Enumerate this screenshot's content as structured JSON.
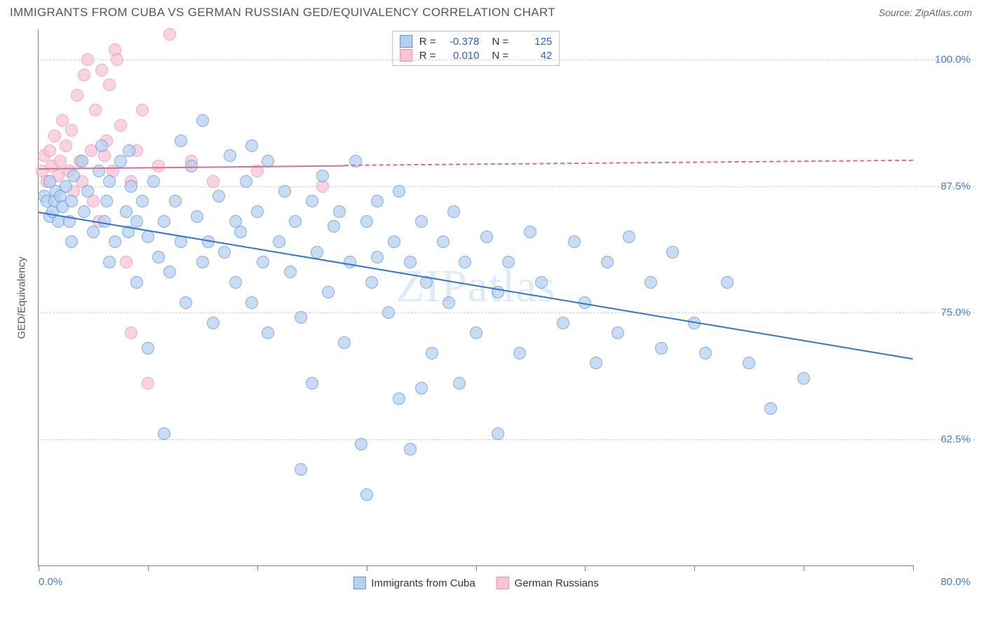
{
  "header": {
    "title": "IMMIGRANTS FROM CUBA VS GERMAN RUSSIAN GED/EQUIVALENCY CORRELATION CHART",
    "source": "Source: ZipAtlas.com"
  },
  "watermark": "ZIPatlas",
  "chart": {
    "type": "scatter",
    "background_color": "#ffffff",
    "grid_color": "#cfcfcf",
    "axis_color": "#808080",
    "x_axis": {
      "min": 0.0,
      "max": 80.0,
      "tick_interval": 10.0,
      "label_min": "0.0%",
      "label_max": "80.0%",
      "label_color": "#3f7ed6"
    },
    "y_axis": {
      "title": "GED/Equivalency",
      "min": 50.0,
      "max": 103.0,
      "gridlines": [
        62.5,
        75.0,
        87.5,
        100.0
      ],
      "tick_labels": [
        "62.5%",
        "75.0%",
        "87.5%",
        "100.0%"
      ],
      "label_color": "#3f7ed6",
      "title_color": "#555555"
    },
    "series": [
      {
        "name": "Immigrants from Cuba",
        "marker_fill": "#b6d1f0",
        "marker_stroke": "#5a93d9",
        "marker_radius": 9,
        "marker_opacity": 0.75,
        "trend_color": "#2f74d0",
        "trend_width": 2,
        "trend_start": {
          "x": 0.0,
          "y": 85.0
        },
        "trend_end": {
          "x": 80.0,
          "y": 70.5
        },
        "r_value": "-0.378",
        "n_value": "125",
        "points": [
          {
            "x": 0.5,
            "y": 86.5
          },
          {
            "x": 0.8,
            "y": 86.0
          },
          {
            "x": 1.0,
            "y": 84.5
          },
          {
            "x": 1.0,
            "y": 88.0
          },
          {
            "x": 1.3,
            "y": 85.0
          },
          {
            "x": 1.5,
            "y": 86.0
          },
          {
            "x": 1.6,
            "y": 87.0
          },
          {
            "x": 1.8,
            "y": 84.0
          },
          {
            "x": 2.0,
            "y": 86.5
          },
          {
            "x": 2.2,
            "y": 85.5
          },
          {
            "x": 2.5,
            "y": 87.5
          },
          {
            "x": 2.8,
            "y": 84.0
          },
          {
            "x": 3.0,
            "y": 86.0
          },
          {
            "x": 3.2,
            "y": 88.5
          },
          {
            "x": 3.0,
            "y": 82.0
          },
          {
            "x": 4.0,
            "y": 90.0
          },
          {
            "x": 4.2,
            "y": 85.0
          },
          {
            "x": 4.5,
            "y": 87.0
          },
          {
            "x": 5.0,
            "y": 83.0
          },
          {
            "x": 5.5,
            "y": 89.0
          },
          {
            "x": 5.8,
            "y": 91.5
          },
          {
            "x": 6.0,
            "y": 84.0
          },
          {
            "x": 6.2,
            "y": 86.0
          },
          {
            "x": 6.5,
            "y": 80.0
          },
          {
            "x": 6.5,
            "y": 88.0
          },
          {
            "x": 7.0,
            "y": 82.0
          },
          {
            "x": 7.5,
            "y": 90.0
          },
          {
            "x": 8.0,
            "y": 85.0
          },
          {
            "x": 8.2,
            "y": 83.0
          },
          {
            "x": 8.3,
            "y": 91.0
          },
          {
            "x": 8.5,
            "y": 87.5
          },
          {
            "x": 9.0,
            "y": 78.0
          },
          {
            "x": 9.0,
            "y": 84.0
          },
          {
            "x": 9.5,
            "y": 86.0
          },
          {
            "x": 10.0,
            "y": 82.5
          },
          {
            "x": 10.0,
            "y": 71.5
          },
          {
            "x": 10.5,
            "y": 88.0
          },
          {
            "x": 11.0,
            "y": 80.5
          },
          {
            "x": 11.5,
            "y": 84.0
          },
          {
            "x": 11.5,
            "y": 63.0
          },
          {
            "x": 12.0,
            "y": 79.0
          },
          {
            "x": 12.5,
            "y": 86.0
          },
          {
            "x": 13.0,
            "y": 82.0
          },
          {
            "x": 13.0,
            "y": 92.0
          },
          {
            "x": 13.5,
            "y": 76.0
          },
          {
            "x": 14.0,
            "y": 89.5
          },
          {
            "x": 14.5,
            "y": 84.5
          },
          {
            "x": 15.0,
            "y": 80.0
          },
          {
            "x": 15.0,
            "y": 94.0
          },
          {
            "x": 15.5,
            "y": 82.0
          },
          {
            "x": 16.0,
            "y": 74.0
          },
          {
            "x": 16.5,
            "y": 86.5
          },
          {
            "x": 17.0,
            "y": 81.0
          },
          {
            "x": 17.5,
            "y": 90.5
          },
          {
            "x": 18.0,
            "y": 84.0
          },
          {
            "x": 18.0,
            "y": 78.0
          },
          {
            "x": 18.5,
            "y": 83.0
          },
          {
            "x": 19.0,
            "y": 88.0
          },
          {
            "x": 19.5,
            "y": 91.5
          },
          {
            "x": 19.5,
            "y": 76.0
          },
          {
            "x": 20.0,
            "y": 85.0
          },
          {
            "x": 20.5,
            "y": 80.0
          },
          {
            "x": 21.0,
            "y": 90.0
          },
          {
            "x": 21.0,
            "y": 73.0
          },
          {
            "x": 22.0,
            "y": 82.0
          },
          {
            "x": 22.5,
            "y": 87.0
          },
          {
            "x": 23.0,
            "y": 79.0
          },
          {
            "x": 23.5,
            "y": 84.0
          },
          {
            "x": 24.0,
            "y": 74.5
          },
          {
            "x": 24.0,
            "y": 59.5
          },
          {
            "x": 25.0,
            "y": 86.0
          },
          {
            "x": 25.0,
            "y": 68.0
          },
          {
            "x": 25.5,
            "y": 81.0
          },
          {
            "x": 26.0,
            "y": 88.5
          },
          {
            "x": 26.5,
            "y": 77.0
          },
          {
            "x": 27.0,
            "y": 83.5
          },
          {
            "x": 27.5,
            "y": 85.0
          },
          {
            "x": 28.0,
            "y": 72.0
          },
          {
            "x": 28.5,
            "y": 80.0
          },
          {
            "x": 29.0,
            "y": 90.0
          },
          {
            "x": 29.5,
            "y": 62.0
          },
          {
            "x": 30.0,
            "y": 84.0
          },
          {
            "x": 30.0,
            "y": 57.0
          },
          {
            "x": 30.5,
            "y": 78.0
          },
          {
            "x": 31.0,
            "y": 86.0
          },
          {
            "x": 31.0,
            "y": 80.5
          },
          {
            "x": 32.0,
            "y": 75.0
          },
          {
            "x": 32.5,
            "y": 82.0
          },
          {
            "x": 33.0,
            "y": 87.0
          },
          {
            "x": 33.0,
            "y": 66.5
          },
          {
            "x": 34.0,
            "y": 80.0
          },
          {
            "x": 34.0,
            "y": 61.5
          },
          {
            "x": 35.0,
            "y": 84.0
          },
          {
            "x": 35.0,
            "y": 67.5
          },
          {
            "x": 35.5,
            "y": 78.0
          },
          {
            "x": 36.0,
            "y": 71.0
          },
          {
            "x": 37.0,
            "y": 82.0
          },
          {
            "x": 37.5,
            "y": 76.0
          },
          {
            "x": 38.0,
            "y": 85.0
          },
          {
            "x": 38.5,
            "y": 68.0
          },
          {
            "x": 39.0,
            "y": 80.0
          },
          {
            "x": 40.0,
            "y": 73.0
          },
          {
            "x": 41.0,
            "y": 82.5
          },
          {
            "x": 42.0,
            "y": 77.0
          },
          {
            "x": 42.0,
            "y": 63.0
          },
          {
            "x": 43.0,
            "y": 80.0
          },
          {
            "x": 44.0,
            "y": 71.0
          },
          {
            "x": 45.0,
            "y": 83.0
          },
          {
            "x": 46.0,
            "y": 78.0
          },
          {
            "x": 48.0,
            "y": 74.0
          },
          {
            "x": 49.0,
            "y": 82.0
          },
          {
            "x": 50.0,
            "y": 76.0
          },
          {
            "x": 51.0,
            "y": 70.0
          },
          {
            "x": 52.0,
            "y": 80.0
          },
          {
            "x": 53.0,
            "y": 73.0
          },
          {
            "x": 54.0,
            "y": 82.5
          },
          {
            "x": 56.0,
            "y": 78.0
          },
          {
            "x": 57.0,
            "y": 71.5
          },
          {
            "x": 58.0,
            "y": 81.0
          },
          {
            "x": 60.0,
            "y": 74.0
          },
          {
            "x": 61.0,
            "y": 71.0
          },
          {
            "x": 63.0,
            "y": 78.0
          },
          {
            "x": 65.0,
            "y": 70.0
          },
          {
            "x": 67.0,
            "y": 65.5
          },
          {
            "x": 70.0,
            "y": 68.5
          }
        ]
      },
      {
        "name": "German Russians",
        "marker_fill": "#f7c6d6",
        "marker_stroke": "#e88fae",
        "marker_radius": 9,
        "marker_opacity": 0.75,
        "trend_color": "#e06a94",
        "trend_width": 2,
        "trend_start": {
          "x": 0.0,
          "y": 89.3
        },
        "trend_end": {
          "x": 28.0,
          "y": 89.6
        },
        "trend_dash_start": {
          "x": 28.0,
          "y": 89.6
        },
        "trend_dash_end": {
          "x": 80.0,
          "y": 90.1
        },
        "r_value": "0.010",
        "n_value": "42",
        "points": [
          {
            "x": 0.3,
            "y": 89.0
          },
          {
            "x": 0.5,
            "y": 90.5
          },
          {
            "x": 0.8,
            "y": 88.0
          },
          {
            "x": 1.0,
            "y": 91.0
          },
          {
            "x": 1.2,
            "y": 89.5
          },
          {
            "x": 1.5,
            "y": 92.5
          },
          {
            "x": 1.8,
            "y": 88.5
          },
          {
            "x": 2.0,
            "y": 90.0
          },
          {
            "x": 2.2,
            "y": 94.0
          },
          {
            "x": 2.5,
            "y": 91.5
          },
          {
            "x": 2.8,
            "y": 89.0
          },
          {
            "x": 3.0,
            "y": 93.0
          },
          {
            "x": 3.2,
            "y": 87.0
          },
          {
            "x": 3.5,
            "y": 96.5
          },
          {
            "x": 3.8,
            "y": 90.0
          },
          {
            "x": 4.0,
            "y": 88.0
          },
          {
            "x": 4.2,
            "y": 98.5
          },
          {
            "x": 4.5,
            "y": 100.0
          },
          {
            "x": 4.8,
            "y": 91.0
          },
          {
            "x": 5.0,
            "y": 86.0
          },
          {
            "x": 5.2,
            "y": 95.0
          },
          {
            "x": 5.5,
            "y": 84.0
          },
          {
            "x": 5.8,
            "y": 99.0
          },
          {
            "x": 6.0,
            "y": 90.5
          },
          {
            "x": 6.2,
            "y": 92.0
          },
          {
            "x": 6.5,
            "y": 97.5
          },
          {
            "x": 6.8,
            "y": 89.0
          },
          {
            "x": 7.0,
            "y": 101.0
          },
          {
            "x": 7.2,
            "y": 100.0
          },
          {
            "x": 7.5,
            "y": 93.5
          },
          {
            "x": 8.0,
            "y": 80.0
          },
          {
            "x": 8.5,
            "y": 88.0
          },
          {
            "x": 8.5,
            "y": 73.0
          },
          {
            "x": 9.0,
            "y": 91.0
          },
          {
            "x": 9.5,
            "y": 95.0
          },
          {
            "x": 10.0,
            "y": 68.0
          },
          {
            "x": 11.0,
            "y": 89.5
          },
          {
            "x": 12.0,
            "y": 102.5
          },
          {
            "x": 14.0,
            "y": 90.0
          },
          {
            "x": 16.0,
            "y": 88.0
          },
          {
            "x": 20.0,
            "y": 89.0
          },
          {
            "x": 26.0,
            "y": 87.5
          }
        ]
      }
    ],
    "legend_top": {
      "rows": [
        {
          "swatch_fill": "#b6d1f0",
          "swatch_stroke": "#5a93d9",
          "r_label": "R =",
          "r_value": "-0.378",
          "n_label": "N =",
          "n_value": "125"
        },
        {
          "swatch_fill": "#f7c6d6",
          "swatch_stroke": "#e88fae",
          "r_label": "R =",
          "r_value": "0.010",
          "n_label": "N =",
          "n_value": "42"
        }
      ]
    },
    "legend_bottom": {
      "items": [
        {
          "swatch_fill": "#b6d1f0",
          "swatch_stroke": "#5a93d9",
          "label": "Immigrants from Cuba"
        },
        {
          "swatch_fill": "#f7c6d6",
          "swatch_stroke": "#e88fae",
          "label": "German Russians"
        }
      ]
    }
  }
}
